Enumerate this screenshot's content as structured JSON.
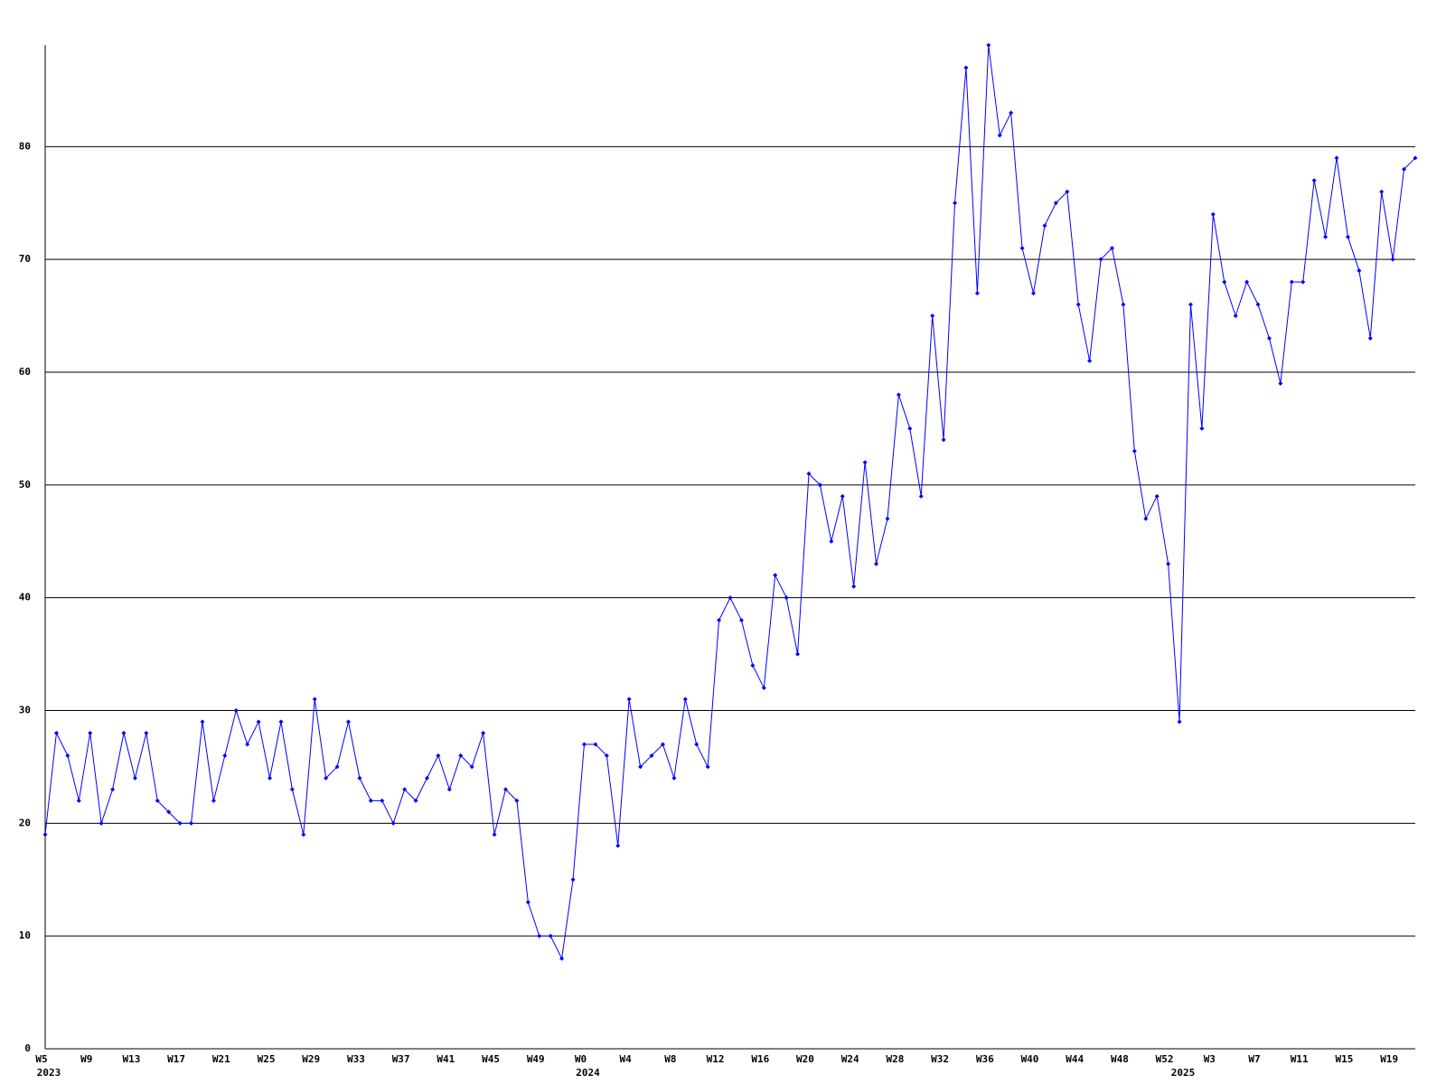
{
  "chart_data": {
    "type": "line",
    "categories": [
      "W5",
      null,
      null,
      null,
      "W9",
      null,
      null,
      null,
      "W13",
      null,
      null,
      null,
      "W17",
      null,
      null,
      null,
      "W21",
      null,
      null,
      null,
      "W25",
      null,
      null,
      null,
      "W29",
      null,
      null,
      null,
      "W33",
      null,
      null,
      null,
      "W37",
      null,
      null,
      null,
      "W41",
      null,
      null,
      null,
      "W45",
      null,
      null,
      null,
      "W49",
      null,
      null,
      null,
      "W0",
      null,
      null,
      null,
      "W4",
      null,
      null,
      null,
      "W8",
      null,
      null,
      null,
      "W12",
      null,
      null,
      null,
      "W16",
      null,
      null,
      null,
      "W20",
      null,
      null,
      null,
      "W24",
      null,
      null,
      null,
      "W28",
      null,
      null,
      null,
      "W32",
      null,
      null,
      null,
      "W36",
      null,
      null,
      null,
      "W40",
      null,
      null,
      null,
      "W44",
      null,
      null,
      null,
      "W48",
      null,
      null,
      null,
      "W52",
      null,
      null,
      null,
      "W3",
      null,
      null,
      null,
      "W7",
      null,
      null,
      null,
      "W11",
      null,
      null,
      null,
      "W15",
      null,
      null,
      null,
      "W19",
      null,
      null
    ],
    "category_years": [
      "2023",
      null,
      null,
      null,
      null,
      null,
      null,
      null,
      null,
      null,
      null,
      null,
      null,
      null,
      null,
      null,
      null,
      null,
      null,
      null,
      null,
      null,
      null,
      null,
      null,
      null,
      null,
      null,
      null,
      null,
      null,
      null,
      null,
      null,
      null,
      null,
      null,
      null,
      null,
      null,
      null,
      null,
      null,
      null,
      null,
      null,
      null,
      null,
      "2024",
      null,
      null,
      null,
      null,
      null,
      null,
      null,
      null,
      null,
      null,
      null,
      null,
      null,
      null,
      null,
      null,
      null,
      null,
      null,
      null,
      null,
      null,
      null,
      null,
      null,
      null,
      null,
      null,
      null,
      null,
      null,
      null,
      null,
      null,
      null,
      null,
      null,
      null,
      null,
      null,
      null,
      null,
      null,
      null,
      null,
      null,
      null,
      null,
      null,
      null,
      null,
      null,
      "2025",
      null,
      null,
      null,
      null,
      null,
      null,
      null,
      null,
      null,
      null,
      null,
      null,
      null,
      null,
      null,
      null,
      null,
      null,
      null,
      null,
      null
    ],
    "series": [
      {
        "color": "#0000ff",
        "values": [
          19,
          28,
          26,
          22,
          28,
          20,
          23,
          28,
          24,
          28,
          22,
          21,
          20,
          20,
          29,
          22,
          26,
          30,
          27,
          29,
          24,
          29,
          23,
          19,
          31,
          24,
          25,
          29,
          24,
          22,
          22,
          20,
          23,
          22,
          24,
          26,
          23,
          26,
          25,
          28,
          19,
          23,
          22,
          13,
          10,
          10,
          8,
          15,
          27,
          27,
          26,
          18,
          31,
          25,
          26,
          27,
          24,
          31,
          27,
          25,
          38,
          40,
          38,
          34,
          32,
          42,
          40,
          35,
          51,
          50,
          45,
          49,
          41,
          52,
          43,
          47,
          58,
          55,
          49,
          65,
          54,
          75,
          87,
          67,
          89,
          81,
          83,
          71,
          67,
          73,
          75,
          76,
          66,
          61,
          70,
          71,
          66,
          53,
          47,
          49,
          43,
          29,
          66,
          55,
          74,
          68,
          65,
          68,
          66,
          63,
          59,
          68,
          68,
          77,
          72,
          79,
          72,
          69,
          63,
          76,
          70,
          78,
          79
        ]
      }
    ],
    "ylim": [
      0,
      89
    ],
    "yticks": [
      0,
      10,
      20,
      30,
      40,
      50,
      60,
      70,
      80
    ],
    "grid": true
  }
}
